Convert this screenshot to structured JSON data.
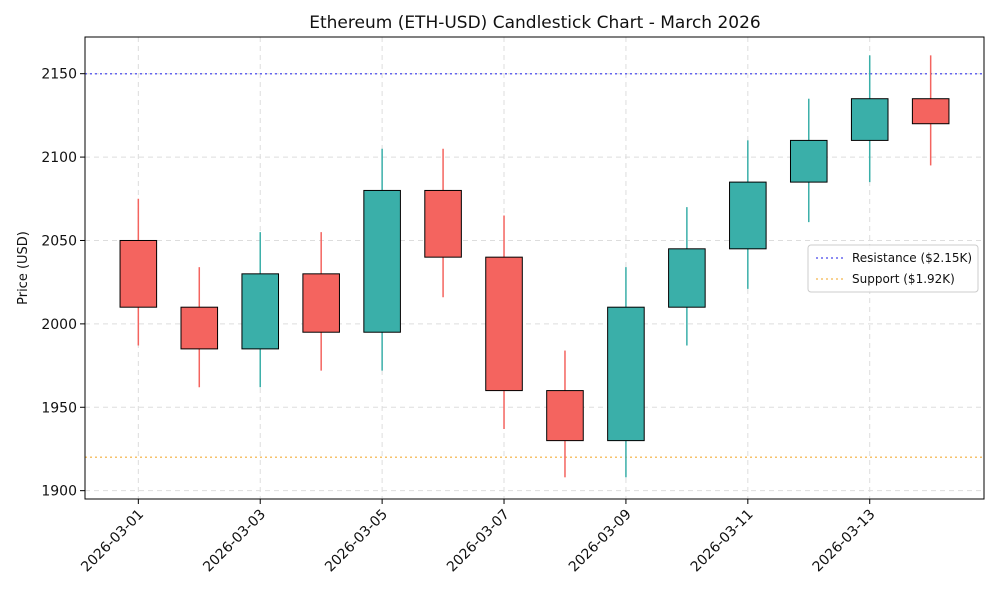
{
  "chart_data": {
    "type": "candlestick",
    "title": "Ethereum (ETH-USD) Candlestick Chart - March 2026",
    "xlabel": "",
    "ylabel": "Price (USD)",
    "ylim": [
      1895,
      2172
    ],
    "xlim": [
      "2026-02-28 T03:00",
      "2026-03-14 T21:00"
    ],
    "yticks": [
      1900,
      1950,
      2000,
      2050,
      2100,
      2150
    ],
    "xticks": [
      "2026-03-01",
      "2026-03-03",
      "2026-03-05",
      "2026-03-07",
      "2026-03-09",
      "2026-03-11",
      "2026-03-13"
    ],
    "grid": true,
    "legend_position": "center-right",
    "colors": {
      "up": "#3aafa9",
      "down": "#f4645f",
      "edge": "#000000"
    },
    "candles": [
      {
        "date": "2026-03-01",
        "open": 2050,
        "high": 2075,
        "low": 1987,
        "close": 2010
      },
      {
        "date": "2026-03-02",
        "open": 2010,
        "high": 2034,
        "low": 1962,
        "close": 1985
      },
      {
        "date": "2026-03-03",
        "open": 1985,
        "high": 2055,
        "low": 1962,
        "close": 2030
      },
      {
        "date": "2026-03-04",
        "open": 2030,
        "high": 2055,
        "low": 1972,
        "close": 1995
      },
      {
        "date": "2026-03-05",
        "open": 1995,
        "high": 2105,
        "low": 1972,
        "close": 2080
      },
      {
        "date": "2026-03-06",
        "open": 2080,
        "high": 2105,
        "low": 2016,
        "close": 2040
      },
      {
        "date": "2026-03-07",
        "open": 2040,
        "high": 2065,
        "low": 1937,
        "close": 1960
      },
      {
        "date": "2026-03-08",
        "open": 1960,
        "high": 1984,
        "low": 1908,
        "close": 1930
      },
      {
        "date": "2026-03-09",
        "open": 1930,
        "high": 2034,
        "low": 1908,
        "close": 2010
      },
      {
        "date": "2026-03-10",
        "open": 2010,
        "high": 2070,
        "low": 1987,
        "close": 2045
      },
      {
        "date": "2026-03-11",
        "open": 2045,
        "high": 2110,
        "low": 2021,
        "close": 2085
      },
      {
        "date": "2026-03-12",
        "open": 2085,
        "high": 2135,
        "low": 2061,
        "close": 2110
      },
      {
        "date": "2026-03-13",
        "open": 2110,
        "high": 2161,
        "low": 2085,
        "close": 2135
      },
      {
        "date": "2026-03-14",
        "open": 2135,
        "high": 2161,
        "low": 2095,
        "close": 2120
      }
    ],
    "reference_lines": [
      {
        "name": "Resistance ($2.15K)",
        "value": 2150,
        "color": "#6666ee",
        "style": "dotted"
      },
      {
        "name": "Support ($1.92K)",
        "value": 1920,
        "color": "#f6c26b",
        "style": "dotted"
      }
    ]
  }
}
